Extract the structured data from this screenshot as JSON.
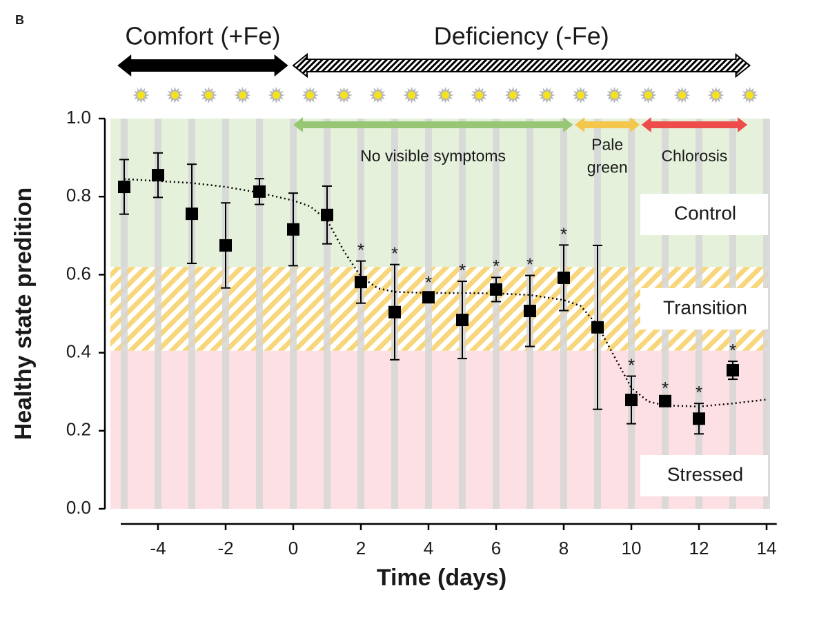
{
  "chart_data": {
    "type": "scatter",
    "panel_label": "B",
    "x_label": "Time (days)",
    "y_label": "Healthy state predition",
    "xlim": [
      -5.3,
      14.3
    ],
    "ylim": [
      0,
      1
    ],
    "xticks": [
      -4,
      -2,
      0,
      2,
      4,
      6,
      8,
      10,
      12,
      14
    ],
    "yticks": [
      {
        "value": 0,
        "label": "0.0"
      },
      0.2,
      0.4,
      0.6,
      0.8,
      {
        "value": 1,
        "label": "1.0"
      }
    ],
    "color": "#000000",
    "x": [
      -5,
      -4,
      -3,
      -2,
      -1,
      0,
      1,
      2,
      3,
      4,
      5,
      6,
      7,
      8,
      9,
      10,
      11,
      12,
      13
    ],
    "values": [
      0.825,
      0.855,
      0.756,
      0.675,
      0.813,
      0.716,
      0.753,
      0.581,
      0.504,
      0.542,
      0.484,
      0.562,
      0.507,
      0.592,
      0.465,
      0.279,
      0.276,
      0.231,
      0.355
    ],
    "errors": [
      0.07,
      0.057,
      0.127,
      0.109,
      0.033,
      0.093,
      0.074,
      0.054,
      0.122,
      0.01,
      0.099,
      0.031,
      0.091,
      0.084,
      0.21,
      0.061,
      0.005,
      0.039,
      0.023
    ],
    "significance": [
      null,
      null,
      null,
      null,
      null,
      null,
      null,
      "*",
      "*",
      "*",
      "*",
      "*",
      "*",
      "*",
      null,
      "*",
      "*",
      "*",
      "*"
    ],
    "fit": {
      "x": [
        -5,
        -4,
        -3,
        -2,
        -1,
        0,
        0.5,
        1,
        1.5,
        2,
        2.5,
        3,
        4,
        5,
        6,
        7,
        8,
        8.5,
        9,
        9.5,
        10,
        10.5,
        11,
        12,
        13,
        14
      ],
      "values": [
        0.845,
        0.84,
        0.835,
        0.825,
        0.81,
        0.79,
        0.775,
        0.74,
        0.66,
        0.595,
        0.565,
        0.556,
        0.553,
        0.553,
        0.552,
        0.548,
        0.535,
        0.52,
        0.47,
        0.39,
        0.31,
        0.275,
        0.265,
        0.262,
        0.27,
        0.28
      ]
    },
    "regions": [
      {
        "label": "Control",
        "from": 0.62,
        "to": 1,
        "color": "#e5f1db"
      },
      {
        "label": "Transition",
        "from": 0.405,
        "to": 0.62,
        "color": "#f8d77c",
        "hatched": true
      },
      {
        "label": "Stressed",
        "from": 0,
        "to": 0.405,
        "color": "#fde0e3"
      }
    ],
    "conditions": [
      {
        "label": "Comfort (+Fe)",
        "from": -5.2,
        "to": -0.15,
        "color": "#000000"
      },
      {
        "label": "Deficiency (-Fe)",
        "from": 0,
        "to": 13.5,
        "color": "#000000",
        "hatched": true
      }
    ],
    "phases": [
      {
        "label_lines": [
          "No visible symptoms"
        ],
        "from": 0,
        "to": 8.27,
        "color": "#97c774"
      },
      {
        "label_lines": [
          "Pale",
          "green"
        ],
        "from": 8.33,
        "to": 10.25,
        "color": "#f5c64c"
      },
      {
        "label_lines": [
          "Chlorosis"
        ],
        "from": 10.3,
        "to": 13.43,
        "color": "#ee4b4b"
      }
    ]
  }
}
